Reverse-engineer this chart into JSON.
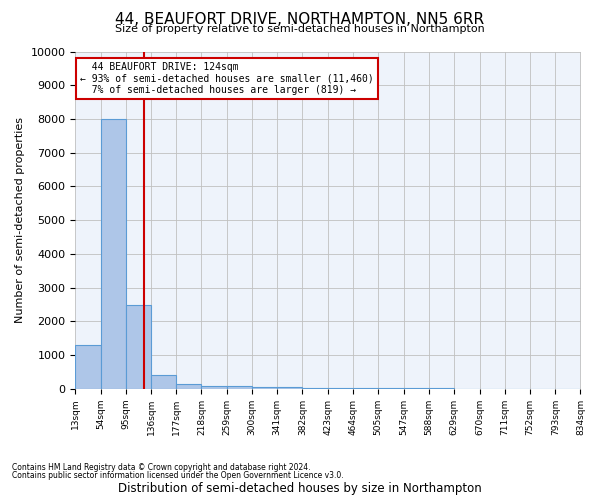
{
  "title": "44, BEAUFORT DRIVE, NORTHAMPTON, NN5 6RR",
  "subtitle": "Size of property relative to semi-detached houses in Northampton",
  "xlabel": "Distribution of semi-detached houses by size in Northampton",
  "ylabel": "Number of semi-detached properties",
  "footnote1": "Contains HM Land Registry data © Crown copyright and database right 2024.",
  "footnote2": "Contains public sector information licensed under the Open Government Licence v3.0.",
  "property_size": 124,
  "property_label": "44 BEAUFORT DRIVE: 124sqm",
  "pct_smaller": 93,
  "num_smaller": 11460,
  "pct_larger": 7,
  "num_larger": 819,
  "bin_edges": [
    13,
    54,
    95,
    136,
    177,
    218,
    259,
    300,
    341,
    382,
    423,
    464,
    505,
    547,
    588,
    629,
    670,
    711,
    752,
    793,
    834
  ],
  "bin_counts": [
    1300,
    8000,
    2500,
    400,
    150,
    100,
    80,
    60,
    50,
    40,
    30,
    25,
    20,
    15,
    12,
    10,
    8,
    7,
    6,
    5
  ],
  "bar_facecolor": "#aec6e8",
  "bar_edgecolor": "#5b9bd5",
  "line_color": "#cc0000",
  "annotation_box_color": "#cc0000",
  "annotation_text_color": "#000000",
  "grid_color": "#c0c0c0",
  "background_color": "#eef3fb",
  "ylim": [
    0,
    10000
  ],
  "yticks": [
    0,
    1000,
    2000,
    3000,
    4000,
    5000,
    6000,
    7000,
    8000,
    9000,
    10000
  ]
}
